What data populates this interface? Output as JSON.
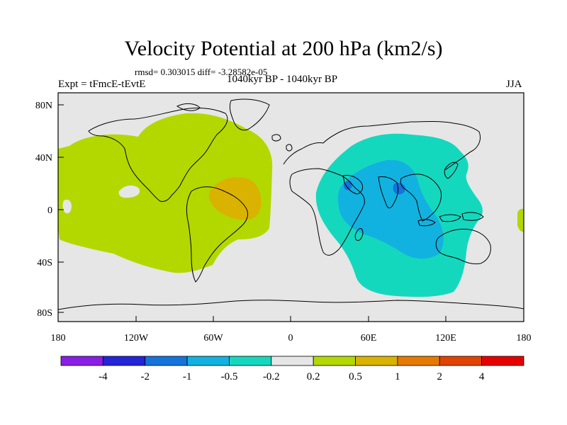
{
  "header": {
    "title": "Velocity Potential at 200 hPa (km2/s)",
    "stats": "rmsd= 0.303015 diff= -3.28582e-05",
    "experiment": "Expt = tFmcE-tEvtE",
    "period": "1040kyr BP - 1040kyr BP",
    "season": "JJA"
  },
  "axes": {
    "lat_labels": [
      "80N",
      "40N",
      "0",
      "40S",
      "80S"
    ],
    "lon_labels": [
      "180",
      "120W",
      "60W",
      "0",
      "60E",
      "120E",
      "180"
    ]
  },
  "colorbar": {
    "labels": [
      "-4",
      "-2",
      "-1",
      "-0.5",
      "-0.2",
      "0.2",
      "0.5",
      "1",
      "2",
      "4"
    ],
    "colors": [
      "#8a1ee6",
      "#2424d8",
      "#1474dc",
      "#12b2e0",
      "#14d8be",
      "#e6e6e6",
      "#b2d800",
      "#dab200",
      "#e67a00",
      "#e04400",
      "#e60000"
    ]
  },
  "fields": {
    "background_color": "#e6e6e6",
    "positive_region_color": "#b2d800",
    "positive_core_color": "#dab200",
    "negative_region_color": "#14d8be",
    "negative_core_color": "#12b2e0",
    "negative_peak_color": "#1474dc"
  }
}
